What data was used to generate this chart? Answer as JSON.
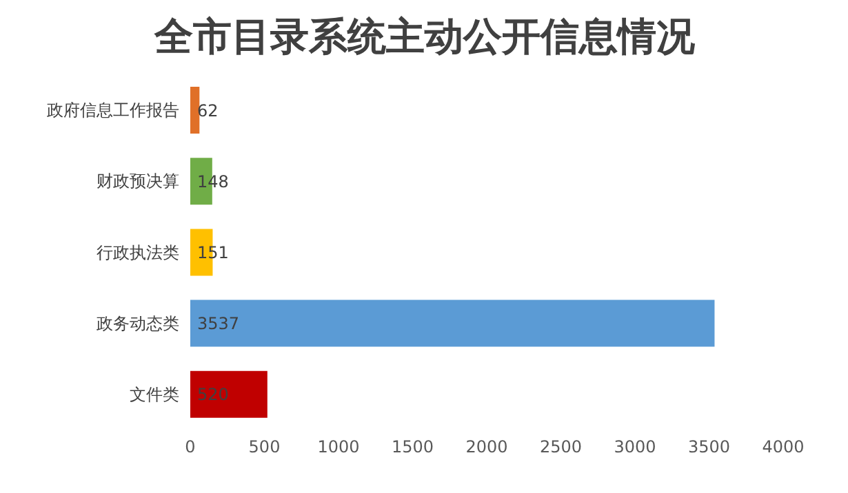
{
  "chart_data": {
    "type": "bar",
    "orientation": "horizontal",
    "title": "全市目录系统主动公开信息情况",
    "categories": [
      "政府信息工作报告",
      "财政预决算",
      "行政执法类",
      "政务动态类",
      "文件类"
    ],
    "values": [
      62,
      148,
      151,
      3537,
      520
    ],
    "colors": [
      "#e07028",
      "#70ad47",
      "#ffc000",
      "#5b9bd5",
      "#c00000"
    ],
    "xlim": [
      0,
      4000
    ],
    "xticks": [
      0,
      500,
      1000,
      1500,
      2000,
      2500,
      3000,
      3500,
      4000
    ],
    "data_labels": true,
    "grid": false
  }
}
